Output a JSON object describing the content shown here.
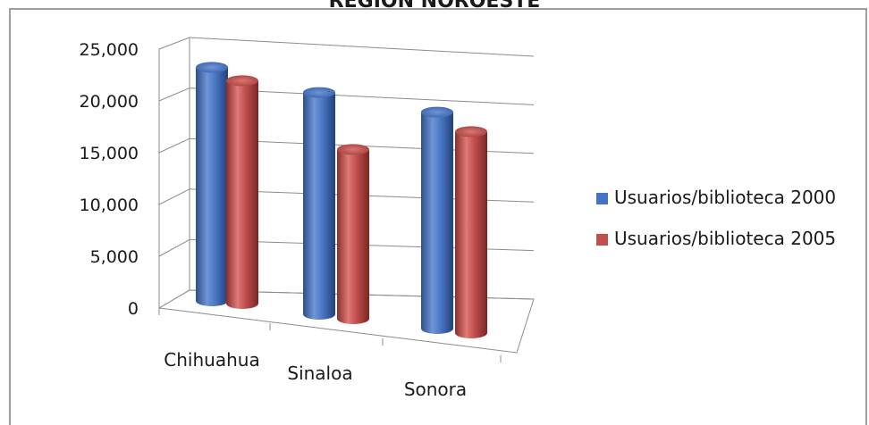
{
  "chart_data": {
    "type": "bar",
    "title": "REGION NOROESTE",
    "xlabel": "",
    "ylabel": "",
    "categories": [
      "Chihuahua",
      "Sinaloa",
      "Sonora"
    ],
    "series": [
      {
        "name": "Usuarios/biblioteca 2000",
        "values": [
          21800,
          20700,
          20200
        ],
        "color": "#4472C4"
      },
      {
        "name": "Usuarios/biblioteca 2005",
        "values": [
          20800,
          15800,
          18800
        ],
        "color": "#C0504D"
      }
    ],
    "ylim": [
      0,
      25000
    ],
    "yticks": [
      "0",
      "5,000",
      "10,000",
      "15,000",
      "20,000",
      "25,000"
    ],
    "grid": true,
    "legend_position": "right"
  }
}
